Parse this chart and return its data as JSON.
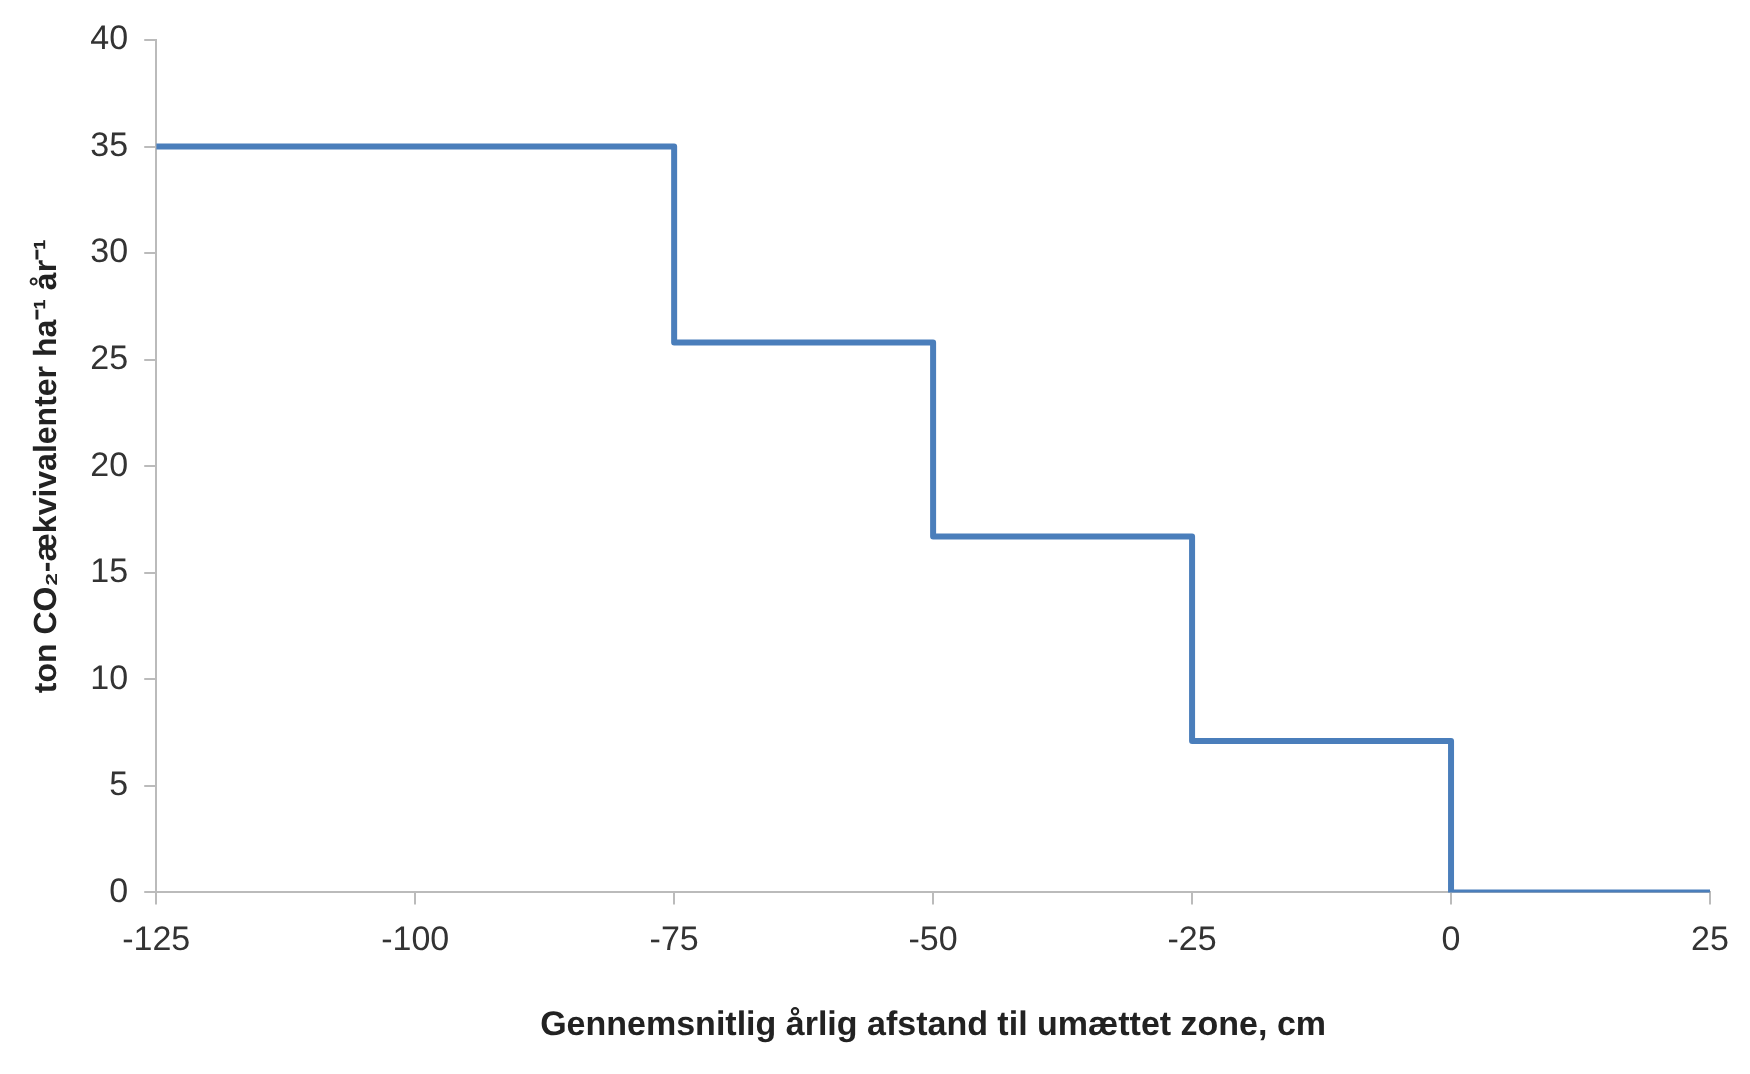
{
  "chart_data": {
    "type": "step",
    "xlabel": "Gennemsnitlig årlig afstand til umættet zone, cm",
    "ylabel": "ton CO₂-ækvivalenter ha⁻¹ år⁻¹",
    "x": [
      -125,
      -75,
      -50,
      -25,
      0,
      25
    ],
    "series": [
      {
        "color": "#4a7ebb",
        "values": [
          35,
          25.8,
          16.7,
          7.1,
          0,
          0
        ]
      }
    ],
    "xlim": [
      -125,
      25
    ],
    "xticks": [
      -125,
      -100,
      -75,
      -50,
      -25,
      0,
      25
    ],
    "ylim": [
      0,
      40
    ],
    "yticks": [
      0,
      5,
      10,
      15,
      20,
      25,
      30,
      35,
      40
    ],
    "grid": false,
    "legend": false,
    "marker": "none",
    "line_style": "solid"
  }
}
